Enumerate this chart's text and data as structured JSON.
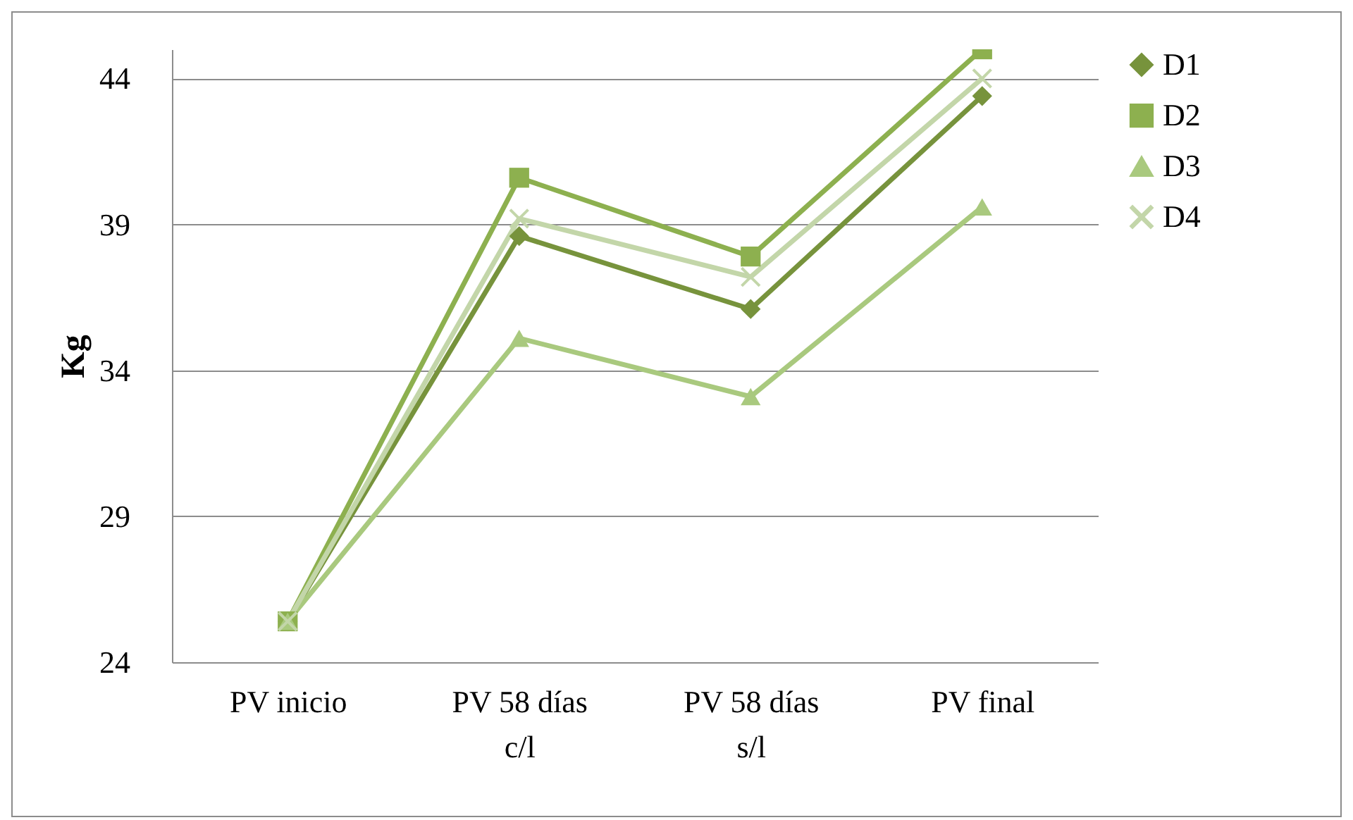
{
  "chart_data": {
    "type": "line",
    "ylabel": "Kg",
    "categories": [
      "PV inicio",
      "PV 58 días c/l",
      "PV 58 días s/l",
      "PV final"
    ],
    "series": [
      {
        "name": "D1",
        "color": "#77933c",
        "marker": "diamond",
        "values": [
          25.4,
          38.6,
          36.1,
          43.4
        ]
      },
      {
        "name": "D2",
        "color": "#8db04f",
        "marker": "square",
        "values": [
          25.4,
          40.6,
          37.9,
          45.0
        ]
      },
      {
        "name": "D3",
        "color": "#a9c97e",
        "marker": "triangle",
        "values": [
          25.4,
          35.1,
          33.1,
          39.6
        ]
      },
      {
        "name": "D4",
        "color": "#c3d6a9",
        "marker": "cross",
        "values": [
          25.4,
          39.2,
          37.2,
          44.0
        ]
      }
    ],
    "ylim": [
      24,
      45
    ],
    "yticks": [
      24,
      29,
      34,
      39,
      44
    ],
    "grid": "y",
    "legend": "right"
  }
}
